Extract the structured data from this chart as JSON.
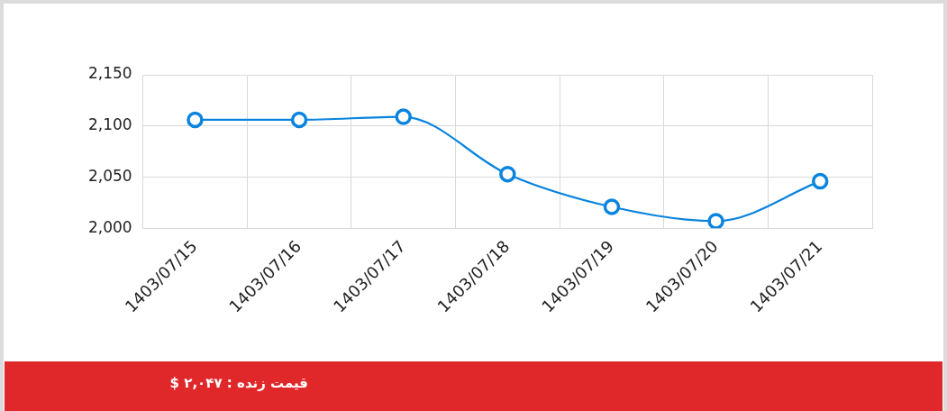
{
  "chart_data": {
    "type": "line",
    "categories": [
      "1403/07/15",
      "1403/07/16",
      "1403/07/17",
      "1403/07/18",
      "1403/07/19",
      "1403/07/20",
      "1403/07/21"
    ],
    "series": [
      {
        "color": "#0a84de",
        "values": [
          2106,
          2106,
          2109,
          2053,
          2021,
          2007,
          2046
        ]
      }
    ],
    "ylim": [
      2000,
      2150
    ],
    "yticks": [
      {
        "value": 2000,
        "label": "2,000"
      },
      {
        "value": 2050,
        "label": "2,050"
      },
      {
        "value": 2100,
        "label": "2,100"
      },
      {
        "value": 2150,
        "label": "2,150"
      }
    ],
    "grid": true,
    "legend": false,
    "marker": "circle",
    "line_style": "solid",
    "annotations": [
      "قیمت زنده : ۲,۰۴۷ $"
    ]
  }
}
